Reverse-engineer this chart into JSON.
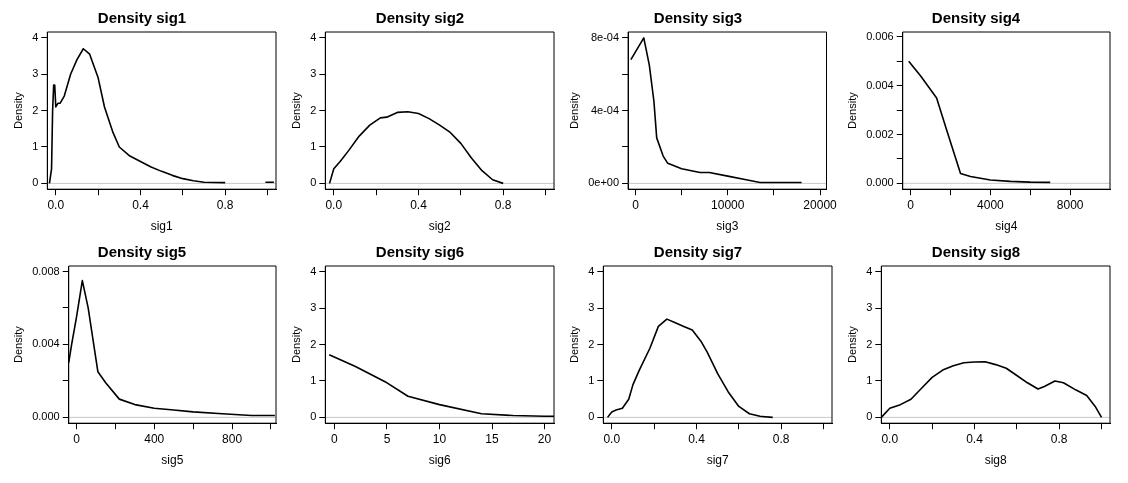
{
  "chart_data": [
    {
      "type": "line",
      "title": "Density sig1",
      "xlabel": "sig1",
      "ylabel": "Density",
      "xlim": [
        -0.04,
        1.04
      ],
      "ylim": [
        -0.16,
        4.16
      ],
      "xticks": [
        {
          "value": 0,
          "label": "0.0"
        },
        {
          "value": 0.2,
          "label": null
        },
        0.4,
        {
          "value": 0.6,
          "label": null
        },
        0.8,
        {
          "value": 1,
          "label": null
        }
      ],
      "yticks": [
        0,
        1,
        2,
        3,
        4
      ],
      "grid": false,
      "legend": false,
      "marker": "none",
      "line_style": "solid",
      "ref_lines": [
        {
          "axis": "y",
          "value": 0,
          "color": "#c8c8c8"
        }
      ],
      "series": [
        {
          "color": "#000000",
          "x": [
            -0.03,
            -0.02,
            -0.015,
            -0.01,
            -0.005,
            0.0,
            0.01,
            0.02,
            0.04,
            0.07,
            0.1,
            0.13,
            0.16,
            0.2,
            0.23,
            0.27,
            0.3,
            0.35,
            0.4,
            0.45,
            0.5,
            0.55,
            0.6,
            0.65,
            0.7,
            0.8,
            0.9,
            0.99,
            1.03
          ],
          "values": [
            0,
            0.4,
            2.0,
            2.7,
            2.7,
            2.1,
            2.2,
            2.2,
            2.4,
            3.0,
            3.4,
            3.7,
            3.55,
            2.9,
            2.1,
            1.4,
            1.0,
            0.75,
            0.6,
            0.45,
            0.33,
            0.22,
            0.13,
            0.07,
            0.03,
            0.02,
            null,
            0.03,
            0.03
          ]
        }
      ]
    },
    {
      "type": "line",
      "title": "Density sig2",
      "xlabel": "sig2",
      "ylabel": "Density",
      "xlim": [
        -0.04,
        1.04
      ],
      "ylim": [
        -0.16,
        4.16
      ],
      "xticks": [
        {
          "value": 0,
          "label": "0.0"
        },
        {
          "value": 0.2,
          "label": null
        },
        0.4,
        {
          "value": 0.6,
          "label": null
        },
        0.8,
        {
          "value": 1,
          "label": null
        }
      ],
      "yticks": [
        0,
        1,
        2,
        3,
        4
      ],
      "grid": false,
      "legend": false,
      "marker": "none",
      "line_style": "solid",
      "ref_lines": [
        {
          "axis": "y",
          "value": 0,
          "color": "#c8c8c8"
        }
      ],
      "series": [
        {
          "color": "#000000",
          "x": [
            -0.02,
            0.0,
            0.03,
            0.07,
            0.12,
            0.17,
            0.22,
            0.25,
            0.3,
            0.35,
            0.4,
            0.45,
            0.5,
            0.55,
            0.6,
            0.65,
            0.7,
            0.75,
            0.8
          ],
          "values": [
            0,
            0.4,
            0.6,
            0.9,
            1.3,
            1.6,
            1.8,
            1.82,
            1.95,
            1.97,
            1.92,
            1.78,
            1.6,
            1.4,
            1.1,
            0.7,
            0.35,
            0.1,
            0
          ]
        }
      ]
    },
    {
      "type": "line",
      "title": "Density sig3",
      "xlabel": "sig3",
      "ylabel": "Density",
      "xlim": [
        -800,
        20700
      ],
      "ylim": [
        -3.2e-05,
        0.000832
      ],
      "xticks": [
        0,
        {
          "value": 5000,
          "label": null
        },
        10000,
        {
          "value": 15000,
          "label": null
        },
        20000
      ],
      "yticks": [
        {
          "value": 0,
          "label": "0e+00"
        },
        {
          "value": 0.0002,
          "label": null
        },
        {
          "value": 0.0004,
          "label": "4e-04"
        },
        {
          "value": 0.0006,
          "label": null
        },
        {
          "value": 0.0008,
          "label": "8e-04"
        }
      ],
      "grid": false,
      "legend": false,
      "marker": "none",
      "line_style": "solid",
      "ref_lines": [
        {
          "axis": "y",
          "value": 0,
          "color": "#c8c8c8"
        }
      ],
      "series": [
        {
          "color": "#000000",
          "x": [
            -500,
            900,
            1500,
            2000,
            2300,
            3000,
            3500,
            5000,
            7000,
            8000,
            10000,
            12000,
            13500,
            18000
          ],
          "values": [
            0.00068,
            0.0008,
            0.00065,
            0.00045,
            0.00025,
            0.00015,
            0.00011,
            8e-05,
            6e-05,
            6e-05,
            4e-05,
            2e-05,
            5e-06,
            5e-06
          ]
        }
      ]
    },
    {
      "type": "line",
      "title": "Density sig4",
      "xlabel": "sig4",
      "ylabel": "Density",
      "xlim": [
        -400,
        10000
      ],
      "ylim": [
        -0.00024,
        0.0062
      ],
      "xticks": [
        0,
        {
          "value": 2000,
          "label": null
        },
        4000,
        {
          "value": 6000,
          "label": null
        },
        8000
      ],
      "yticks": [
        {
          "value": 0,
          "label": "0.000"
        },
        {
          "value": 0.001,
          "label": null
        },
        {
          "value": 0.002,
          "label": "0.002"
        },
        {
          "value": 0.003,
          "label": null
        },
        {
          "value": 0.004,
          "label": "0.004"
        },
        {
          "value": 0.005,
          "label": null
        },
        {
          "value": 0.006,
          "label": "0.006"
        }
      ],
      "grid": false,
      "legend": false,
      "marker": "none",
      "line_style": "solid",
      "ref_lines": [
        {
          "axis": "y",
          "value": 0,
          "color": "#c8c8c8"
        }
      ],
      "series": [
        {
          "color": "#000000",
          "x": [
            -100,
            500,
            1300,
            1800,
            2500,
            3000,
            4000,
            5000,
            6000,
            7000
          ],
          "values": [
            0.005,
            0.0044,
            0.0035,
            0.0022,
            0.0004,
            0.00028,
            0.00014,
            8e-05,
            5e-05,
            4e-05
          ]
        }
      ]
    },
    {
      "type": "line",
      "title": "Density sig5",
      "xlabel": "sig5",
      "ylabel": "Density",
      "xlim": [
        -40,
        1026
      ],
      "ylim": [
        -0.00032,
        0.0083
      ],
      "xticks": [
        0,
        {
          "value": 200,
          "label": null
        },
        400,
        {
          "value": 600,
          "label": null
        },
        800,
        {
          "value": 1000,
          "label": null
        }
      ],
      "yticks": [
        {
          "value": 0,
          "label": "0.000"
        },
        {
          "value": 0.002,
          "label": null
        },
        {
          "value": 0.004,
          "label": "0.004"
        },
        {
          "value": 0.006,
          "label": null
        },
        {
          "value": 0.008,
          "label": "0.008"
        }
      ],
      "grid": false,
      "legend": false,
      "marker": "none",
      "line_style": "solid",
      "ref_lines": [
        {
          "axis": "y",
          "value": 0,
          "color": "#c8c8c8"
        }
      ],
      "series": [
        {
          "color": "#000000",
          "x": [
            -40,
            -25,
            0,
            30,
            60,
            110,
            150,
            220,
            300,
            400,
            500,
            600,
            750,
            900,
            1020
          ],
          "values": [
            0.003,
            0.004,
            0.0055,
            0.0075,
            0.006,
            0.0025,
            0.0019,
            0.001,
            0.0007,
            0.0005,
            0.0004,
            0.0003,
            0.0002,
            0.0001,
            0.0001
          ]
        }
      ]
    },
    {
      "type": "line",
      "title": "Density sig6",
      "xlabel": "sig6",
      "ylabel": "Density",
      "xlim": [
        -0.87,
        20.9
      ],
      "ylim": [
        -0.16,
        4.16
      ],
      "xticks": [
        0,
        5,
        10,
        15,
        20
      ],
      "yticks": [
        0,
        1,
        2,
        3,
        4
      ],
      "grid": false,
      "legend": false,
      "marker": "none",
      "line_style": "solid",
      "ref_lines": [
        {
          "axis": "y",
          "value": 0,
          "color": "#c8c8c8"
        }
      ],
      "series": [
        {
          "color": "#000000",
          "x": [
            -0.5,
            2,
            5,
            7,
            10,
            14,
            17,
            20,
            20.9
          ],
          "values": [
            1.72,
            1.4,
            0.95,
            0.58,
            0.35,
            0.1,
            0.05,
            0.03,
            0.03
          ]
        }
      ]
    },
    {
      "type": "line",
      "title": "Density sig7",
      "xlabel": "sig7",
      "ylabel": "Density",
      "xlim": [
        -0.04,
        1.04
      ],
      "ylim": [
        -0.16,
        4.16
      ],
      "xticks": [
        {
          "value": 0,
          "label": "0.0"
        },
        {
          "value": 0.2,
          "label": null
        },
        0.4,
        {
          "value": 0.6,
          "label": null
        },
        0.8,
        {
          "value": 1,
          "label": null
        }
      ],
      "yticks": [
        0,
        1,
        2,
        3,
        4
      ],
      "grid": false,
      "legend": false,
      "marker": "none",
      "line_style": "solid",
      "ref_lines": [
        {
          "axis": "y",
          "value": 0,
          "color": "#c8c8c8"
        }
      ],
      "series": [
        {
          "color": "#000000",
          "x": [
            -0.02,
            0.0,
            0.02,
            0.05,
            0.08,
            0.1,
            0.13,
            0.18,
            0.22,
            0.26,
            0.3,
            0.34,
            0.38,
            0.42,
            0.45,
            0.5,
            0.55,
            0.6,
            0.65,
            0.7,
            0.76
          ],
          "values": [
            0,
            0.15,
            0.2,
            0.25,
            0.5,
            0.9,
            1.3,
            1.9,
            2.5,
            2.7,
            2.6,
            2.5,
            2.4,
            2.1,
            1.8,
            1.2,
            0.7,
            0.3,
            0.1,
            0.03,
            0
          ]
        }
      ]
    },
    {
      "type": "line",
      "title": "Density sig8",
      "xlabel": "sig8",
      "ylabel": "Density",
      "xlim": [
        -0.04,
        1.04
      ],
      "ylim": [
        -0.16,
        4.16
      ],
      "xticks": [
        {
          "value": 0,
          "label": "0.0"
        },
        {
          "value": 0.2,
          "label": null
        },
        0.4,
        {
          "value": 0.6,
          "label": null
        },
        0.8,
        {
          "value": 1,
          "label": null
        }
      ],
      "yticks": [
        0,
        1,
        2,
        3,
        4
      ],
      "grid": false,
      "legend": false,
      "marker": "none",
      "line_style": "solid",
      "ref_lines": [
        {
          "axis": "y",
          "value": 0,
          "color": "#c8c8c8"
        }
      ],
      "series": [
        {
          "color": "#000000",
          "x": [
            -0.04,
            0.0,
            0.05,
            0.1,
            0.15,
            0.2,
            0.25,
            0.3,
            0.35,
            0.4,
            0.45,
            0.5,
            0.55,
            0.6,
            0.65,
            0.7,
            0.73,
            0.78,
            0.82,
            0.88,
            0.93,
            0.97,
            1.0
          ],
          "values": [
            0,
            0.25,
            0.35,
            0.5,
            0.8,
            1.1,
            1.3,
            1.42,
            1.5,
            1.52,
            1.53,
            1.45,
            1.35,
            1.15,
            0.95,
            0.78,
            0.85,
            1.0,
            0.95,
            0.75,
            0.6,
            0.3,
            0
          ]
        }
      ]
    }
  ]
}
